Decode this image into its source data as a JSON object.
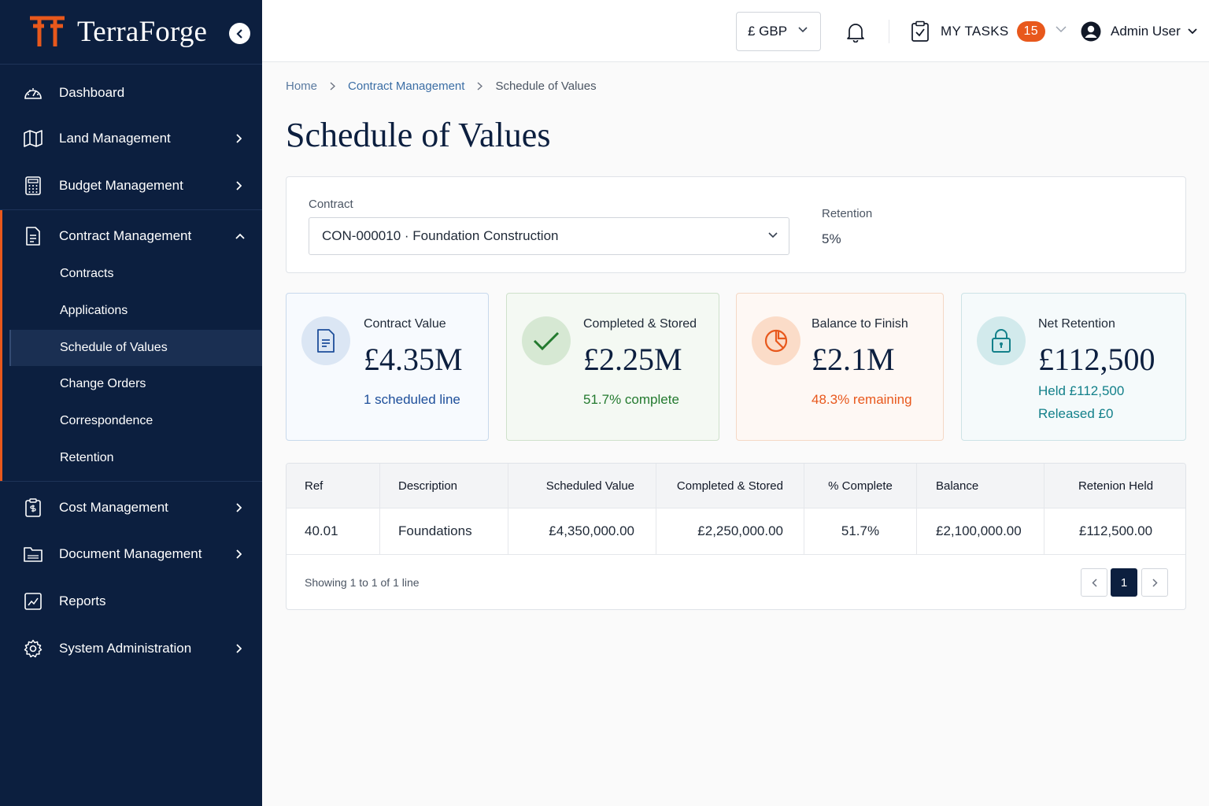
{
  "brand": {
    "name": "TerraForge"
  },
  "sidebar": {
    "items": [
      {
        "label": "Dashboard",
        "icon": "dashboard-gauge-icon"
      },
      {
        "label": "Land Management",
        "icon": "map-icon"
      },
      {
        "label": "Budget Management",
        "icon": "calculator-icon"
      },
      {
        "label": "Contract Management",
        "icon": "document-icon",
        "expanded": true
      },
      {
        "label": "Cost Management",
        "icon": "clipboard-dollar-icon"
      },
      {
        "label": "Document Management",
        "icon": "folder-icon"
      },
      {
        "label": "Reports",
        "icon": "chart-icon"
      },
      {
        "label": "System Administration",
        "icon": "gear-icon"
      }
    ],
    "sub_items": [
      {
        "label": "Contracts"
      },
      {
        "label": "Applications"
      },
      {
        "label": "Schedule of Values",
        "active": true
      },
      {
        "label": "Change Orders"
      },
      {
        "label": "Correspondence"
      },
      {
        "label": "Retention"
      }
    ]
  },
  "topbar": {
    "currency": "£ GBP",
    "tasks_label": "MY TASKS",
    "tasks_count": "15",
    "user_name": "Admin User"
  },
  "breadcrumb": [
    "Home",
    "Contract Management",
    "Schedule of Values"
  ],
  "page_title": "Schedule of Values",
  "filters": {
    "contract_label": "Contract",
    "contract_value": "CON-000010 · Foundation Construction",
    "retention_label": "Retention",
    "retention_value": "5%"
  },
  "stats": [
    {
      "label": "Contract Value",
      "value": "£4.35M",
      "sub": "1 scheduled line",
      "sub_color": "#1d4e9a"
    },
    {
      "label": "Completed & Stored",
      "value": "£2.25M",
      "sub": "51.7% complete",
      "sub_color": "#237a2f"
    },
    {
      "label": "Balance to Finish",
      "value": "£2.1M",
      "sub": "48.3% remaining",
      "sub_color": "#e8581c"
    },
    {
      "label": "Net Retention",
      "value": "£112,500",
      "sub": "Held £112,500",
      "sub2": "Released £0",
      "sub_color": "#13808a"
    }
  ],
  "table": {
    "columns": [
      "Ref",
      "Description",
      "Scheduled Value",
      "Completed & Stored",
      "% Complete",
      "Balance",
      "Retenion Held"
    ],
    "rows": [
      [
        "40.01",
        "Foundations",
        "£4,350,000.00",
        "£2,250,000.00",
        "51.7%",
        "£2,100,000.00",
        "£112,500.00"
      ]
    ],
    "footer": "Showing 1 to 1 of 1 line",
    "page": "1"
  },
  "colors": {
    "sidebar_bg": "#0c1f3f",
    "accent": "#e8581c"
  }
}
